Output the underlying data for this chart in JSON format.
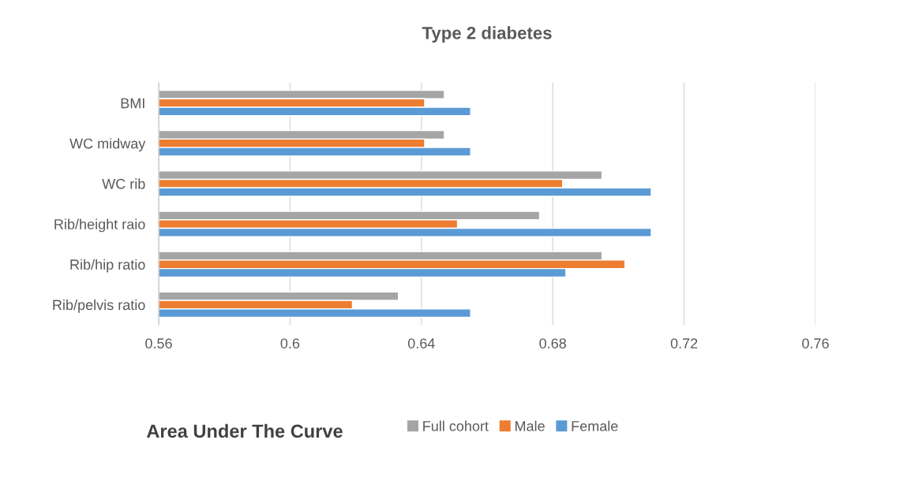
{
  "chart_data": {
    "type": "bar",
    "orientation": "horizontal",
    "title": "Type 2 diabetes",
    "xlabel": "Area Under The Curve",
    "categories": [
      "BMI",
      "WC midway",
      "WC rib",
      "Rib/height raio",
      "Rib/hip ratio",
      "Rib/pelvis ratio"
    ],
    "series": [
      {
        "name": "Full cohort",
        "color": "#a5a5a5",
        "values": [
          0.647,
          0.647,
          0.695,
          0.676,
          0.695,
          0.633
        ]
      },
      {
        "name": "Male",
        "color": "#ed7d31",
        "values": [
          0.641,
          0.641,
          0.683,
          0.651,
          0.702,
          0.619
        ]
      },
      {
        "name": "Female",
        "color": "#5b9bd5",
        "values": [
          0.655,
          0.655,
          0.71,
          0.71,
          0.684,
          0.655
        ]
      }
    ],
    "xlim": [
      0.56,
      0.76
    ],
    "xticks": [
      0.56,
      0.6,
      0.64,
      0.68,
      0.72,
      0.76
    ],
    "grid": "x",
    "legend": "bottom"
  }
}
